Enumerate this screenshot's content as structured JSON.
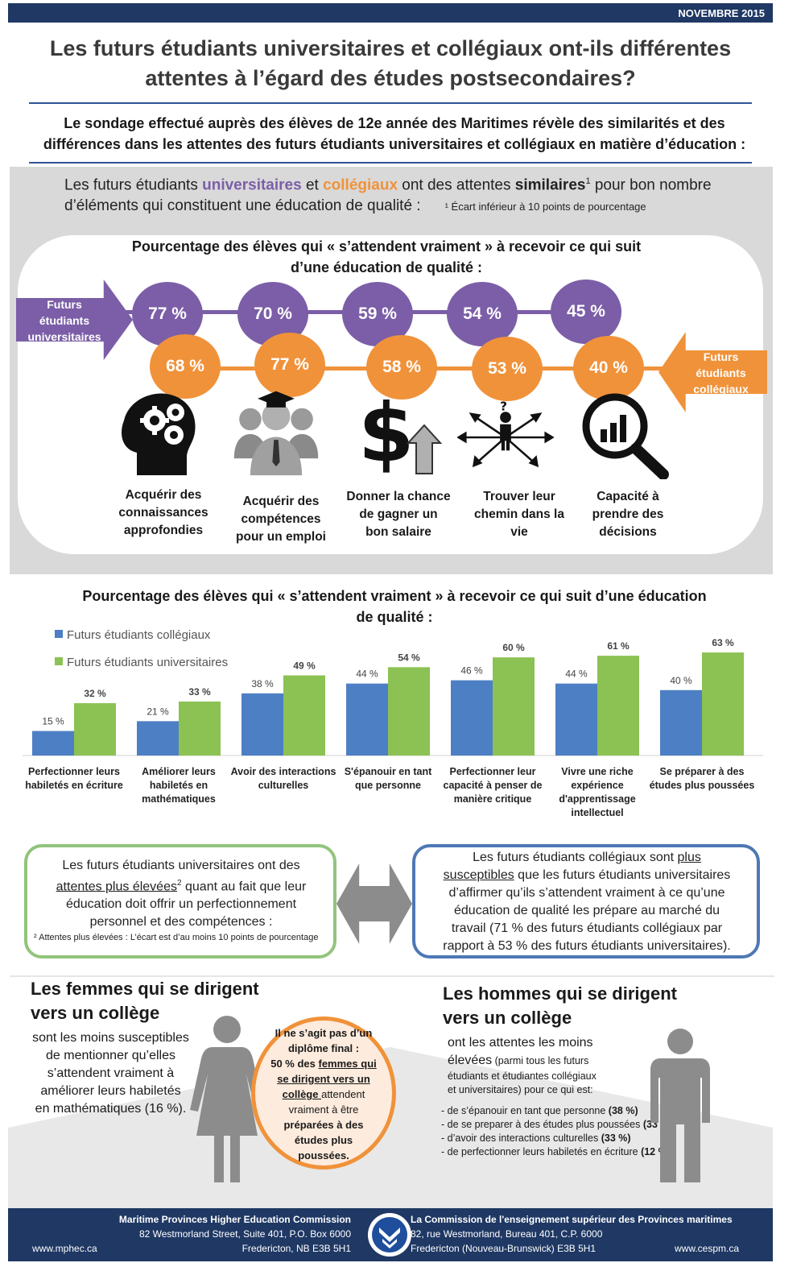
{
  "header": {
    "date": "NOVEMBRE 2015"
  },
  "title": {
    "line1": "Les futurs étudiants universitaires et collégiaux ont-ils différentes",
    "line2": "attentes à l’égard des études postsecondaires?"
  },
  "intro": {
    "line1": "Le sondage effectué auprès des élèves de 12e année des Maritimes révèle des similarités et des",
    "line2": "différences dans les attentes des futurs étudiants universitaires et collégiaux en matière d’éducation :"
  },
  "similar": {
    "p1": "Les futurs étudiants ",
    "uni": "universitaires",
    "p2": " et ",
    "col": "collégiaux",
    "p3": " ont des attentes ",
    "sim": "similaires",
    "sup": "1",
    "p4": " pour bon nombre",
    "line2": "d’éléments qui constituent une éducation de qualité :",
    "footnote": "¹ Écart inférieur à 10 points de pourcentage"
  },
  "panel": {
    "title_line1": "Pourcentage des élèves qui « s’attendent vraiment » à recevoir ce qui suit",
    "title_line2": "d’une éducation de qualité :",
    "arrow_uni": [
      "Futurs",
      "étudiants",
      "universitaires"
    ],
    "arrow_col": [
      "Futurs",
      "étudiants",
      "collégiaux"
    ],
    "items": [
      {
        "uni": "77 %",
        "col": "68 %",
        "label": [
          "Acquérir des",
          "connaissances",
          "approfondies"
        ],
        "icon": "head-gears-icon"
      },
      {
        "uni": "70 %",
        "col": "77 %",
        "label": [
          "Acquérir des",
          "compétences",
          "pour un emploi"
        ],
        "icon": "graduates-icon"
      },
      {
        "uni": "59 %",
        "col": "58 %",
        "label": [
          "Donner la chance",
          "de gagner un",
          "bon salaire"
        ],
        "icon": "dollar-up-arrow-icon"
      },
      {
        "uni": "54 %",
        "col": "53 %",
        "label": [
          "Trouver leur",
          "chemin dans la",
          "vie"
        ],
        "icon": "crossroads-person-icon"
      },
      {
        "uni": "45 %",
        "col": "40 %",
        "label": [
          "Capacité à",
          "prendre des",
          "décisions"
        ],
        "icon": "magnifier-chart-icon"
      }
    ]
  },
  "chart_data": {
    "type": "bar",
    "title": "Pourcentage des élèves qui « s’attendent vraiment » à recevoir ce qui suit d’une éducation de qualité :",
    "legend_position": "top-left",
    "categories": [
      [
        "Perfectionner leurs",
        "habiletés en écriture"
      ],
      [
        "Améliorer leurs",
        "habiletés en",
        "mathématiques"
      ],
      [
        "Avoir des interactions",
        "culturelles"
      ],
      [
        "S'épanouir en tant",
        "que personne"
      ],
      [
        "Perfectionner leur",
        "capacité à penser de",
        "manière critique"
      ],
      [
        "Vivre une riche",
        "expérience",
        "d'apprentissage",
        "intellectuel"
      ],
      [
        "Se préparer à des",
        "études plus poussées"
      ]
    ],
    "series": [
      {
        "name": "Futurs étudiants collégiaux",
        "color": "#4d7fc4",
        "values": [
          15,
          21,
          38,
          44,
          46,
          44,
          40
        ],
        "labels": [
          "15 %",
          "21 %",
          "38 %",
          "44 %",
          "46 %",
          "44 %",
          "40 %"
        ]
      },
      {
        "name": "Futurs étudiants universitaires",
        "color": "#8cc153",
        "values": [
          32,
          33,
          49,
          54,
          60,
          61,
          63
        ],
        "labels": [
          "32 %",
          "33 %",
          "49 %",
          "54 %",
          "60 %",
          "61 %",
          "63 %"
        ]
      }
    ],
    "ylim": [
      0,
      65
    ],
    "grid": false
  },
  "boxes": {
    "left": {
      "l1": "Les futurs étudiants universitaires ont des",
      "u": "attentes plus élevées",
      "sup": "2",
      "l2b": " quant au fait que leur",
      "l3": "éducation doit offrir un perfectionnement",
      "l4": "personnel et des compétences :",
      "footnote": "² Attentes plus élevées : L’écart est d’au moins 10 points de pourcentage"
    },
    "right": {
      "l1a": "Les futurs étudiants collégiaux sont ",
      "u1": "plus",
      "u2": "susceptibles",
      "l2b": " que les futurs étudiants universitaires",
      "l3": "d’affirmer qu’ils s’attendent vraiment à ce qu’une",
      "l4": "éducation de qualité les prépare au marché du",
      "l5": "travail (71 % des futurs étudiants collégiaux par",
      "l6": "rapport à 53 % des futurs étudiants universitaires)."
    }
  },
  "women": {
    "head1": "Les femmes qui se dirigent",
    "head2": "vers un collège",
    "text": [
      "sont les moins susceptibles",
      "de mentionner qu’elles",
      "s’attendent vraiment à",
      "améliorer leurs habiletés",
      "en mathématiques (16 %)."
    ]
  },
  "middle": {
    "b1": "Il ne s’agit pas d’un",
    "b2": "diplôme final :",
    "b3a": "50 % des ",
    "b3u": "femmes qui",
    "b4u": "se dirigent vers un",
    "b5u": "collège ",
    "b5": "attendent",
    "l6": "vraiment à être",
    "b7": "préparées à des",
    "b8": "études plus",
    "b9": "poussées."
  },
  "men": {
    "head1": "Les hommes qui se dirigent",
    "head2": "vers un collège",
    "t1": "ont les attentes les moins",
    "t2a": "élevées",
    "t2b": " (parmi tous les futurs",
    "t3": "étudiants et étudiantes collégiaux",
    "t4": "et universitaires) pour ce qui est:",
    "list": [
      {
        "text": "- de s’épanouir en tant que personne ",
        "val": "(38 %)"
      },
      {
        "text": "- de se preparer à des études plus poussées ",
        "val": "(33 %)"
      },
      {
        "text": "- d’avoir des interactions culturelles ",
        "val": "(33 %)"
      },
      {
        "text": "- de perfectionner leurs habiletés en écriture ",
        "val": "(12 %)"
      }
    ]
  },
  "footer": {
    "en_org": "Maritime Provinces Higher Education Commission",
    "en_addr1": "82 Westmorland Street, Suite 401, P.O. Box 6000",
    "en_addr2": "Fredericton, NB E3B 5H1",
    "en_web": "www.mphec.ca",
    "fr_org": "La Commission de l'enseignement supérieur des Provinces maritimes",
    "fr_addr1": "82, rue Westmorland, Bureau 401, C.P. 6000",
    "fr_addr2": "Fredericton (Nouveau-Brunswick)  E3B 5H1",
    "fr_web": "www.cespm.ca"
  }
}
